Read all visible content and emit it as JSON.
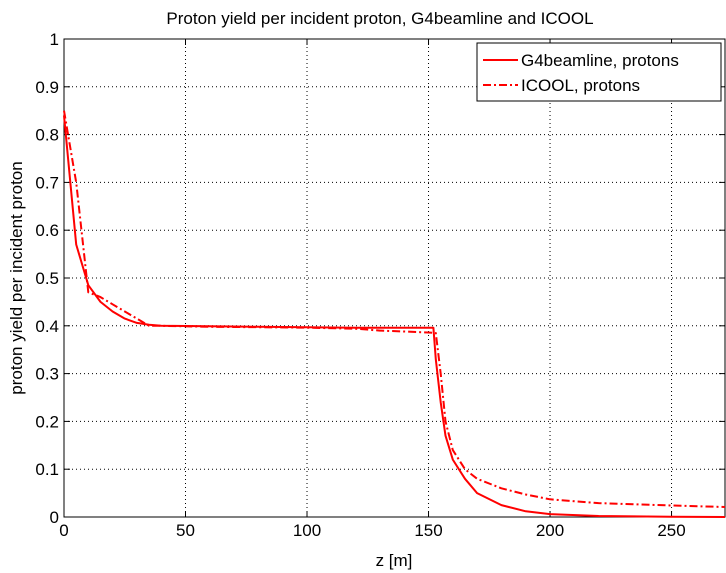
{
  "chart_data": {
    "type": "line",
    "title": "Proton yield per incident proton, G4beamline and ICOOL",
    "xlabel": "z [m]",
    "ylabel": "proton yield per incident proton",
    "xlim": [
      0,
      272
    ],
    "ylim": [
      0,
      1
    ],
    "xticks": [
      0,
      50,
      100,
      150,
      200,
      250
    ],
    "yticks": [
      0,
      0.1,
      0.2,
      0.3,
      0.4,
      0.5,
      0.6,
      0.7,
      0.8,
      0.9,
      1
    ],
    "xtick_labels": [
      "0",
      "50",
      "100",
      "150",
      "200",
      "250"
    ],
    "ytick_labels": [
      "0",
      "0.1",
      "0.2",
      "0.3",
      "0.4",
      "0.5",
      "0.6",
      "0.7",
      "0.8",
      "0.9",
      "1"
    ],
    "grid": true,
    "legend_position": "top-right",
    "series": [
      {
        "name": "G4beamline, protons",
        "style": "solid",
        "color": "#ff0000",
        "x": [
          0,
          5,
          10,
          15,
          20,
          25,
          30,
          35,
          40,
          60,
          80,
          100,
          120,
          140,
          152,
          153,
          155,
          157,
          160,
          165,
          170,
          180,
          190,
          200,
          220,
          250,
          272
        ],
        "y": [
          0.84,
          0.57,
          0.485,
          0.45,
          0.43,
          0.415,
          0.406,
          0.402,
          0.4,
          0.399,
          0.398,
          0.397,
          0.396,
          0.396,
          0.396,
          0.33,
          0.24,
          0.17,
          0.12,
          0.08,
          0.05,
          0.025,
          0.012,
          0.006,
          0.002,
          0.0005,
          0.0
        ]
      },
      {
        "name": "ICOOL, protons",
        "style": "dashdot",
        "color": "#ff0000",
        "x": [
          0,
          5,
          10,
          15,
          20,
          25,
          30,
          35,
          40,
          60,
          80,
          100,
          120,
          130,
          140,
          150,
          153,
          155,
          157,
          160,
          165,
          170,
          180,
          190,
          200,
          220,
          250,
          272
        ],
        "y": [
          0.85,
          0.7,
          0.47,
          0.46,
          0.445,
          0.43,
          0.415,
          0.4,
          0.4,
          0.398,
          0.397,
          0.396,
          0.394,
          0.39,
          0.388,
          0.386,
          0.385,
          0.3,
          0.2,
          0.14,
          0.1,
          0.08,
          0.06,
          0.047,
          0.037,
          0.029,
          0.024,
          0.021
        ]
      }
    ]
  }
}
